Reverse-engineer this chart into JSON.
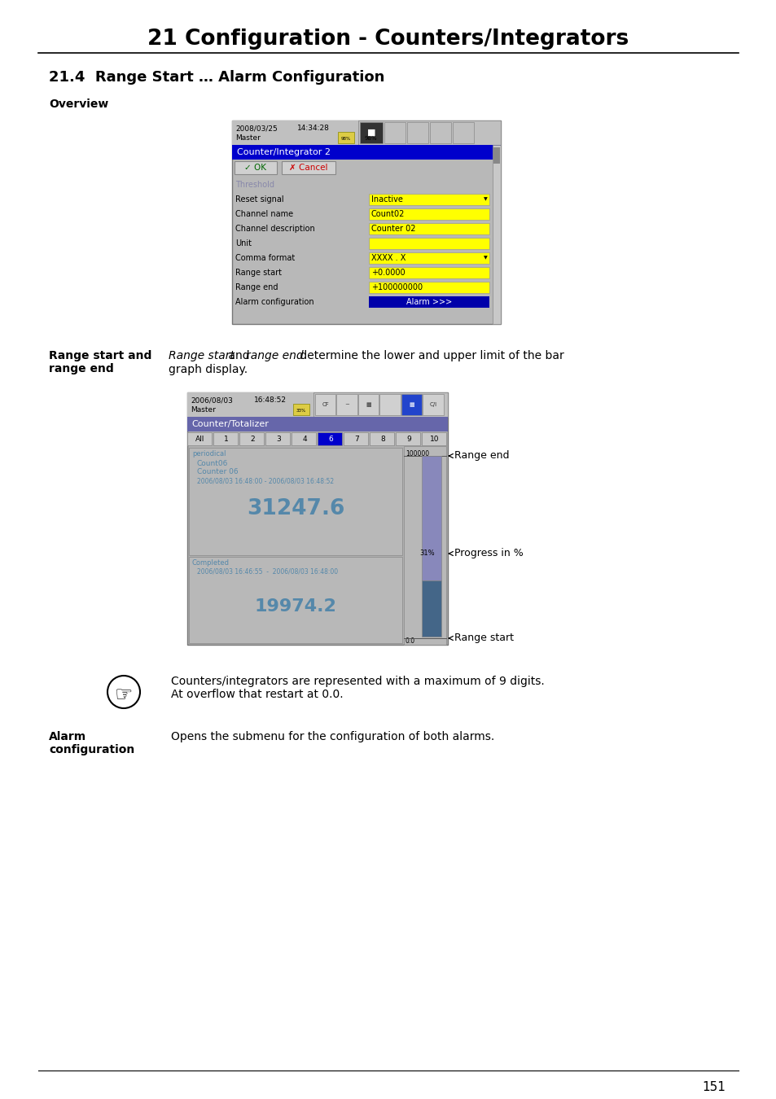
{
  "page_title": "21 Configuration - Counters/Integrators",
  "section_title": "21.4  Range Start … Alarm Configuration",
  "overview_label": "Overview",
  "note_text_1": "Counters/integrators are represented with a maximum of 9 digits.",
  "note_text_2": "At overflow that restart at 0.0.",
  "alarm_config_text": "Opens the submenu for the configuration of both alarms.",
  "page_number": "151",
  "bg_color": "#ffffff",
  "screen1": {
    "date": "2008/03/25",
    "time": "14:34:28",
    "master": "Master",
    "battery_pct": "98%",
    "title_bar": "Counter/Integrator 2",
    "title_bar_bg": "#0000cc",
    "title_bar_fg": "#ffffff",
    "screen_bg": "#b8b8b8",
    "top_bar_bg": "#a0a0a0",
    "fields": [
      {
        "label": "Threshold",
        "value": "",
        "label_color": "#8888aa",
        "is_header": true
      },
      {
        "label": "Reset signal",
        "value": "Inactive",
        "dropdown": true
      },
      {
        "label": "Channel name",
        "value": "Count02"
      },
      {
        "label": "Channel description",
        "value": "Counter 02"
      },
      {
        "label": "Unit",
        "value": ""
      },
      {
        "label": "Comma format",
        "value": "XXXX . X",
        "dropdown": true
      },
      {
        "label": "Range start",
        "value": "+0.0000"
      },
      {
        "label": "Range end",
        "value": "+100000000"
      },
      {
        "label": "Alarm configuration",
        "value": "Alarm >>>",
        "is_button": true
      }
    ],
    "field_bg": "#ffff00",
    "button_bg": "#0000aa",
    "button_fg": "#ffffff"
  },
  "screen2": {
    "date": "2006/08/03",
    "time": "16:48:52",
    "master": "Master",
    "battery_pct": "33%",
    "title_bar": "Counter/Totalizer",
    "title_bar_bg": "#6666aa",
    "title_bar_fg": "#ffffff",
    "screen_bg": "#b0b0b0",
    "top_bar_bg": "#a0a0a0",
    "tabs": [
      "All",
      "1",
      "2",
      "3",
      "4",
      "6",
      "7",
      "8",
      "9",
      "10"
    ],
    "active_tab": "6",
    "active_tab_bg": "#0000cc",
    "active_tab_fg": "#ffffff",
    "text_color": "#5588aa",
    "bar_top_color": "#8888bb",
    "bar_bot_color": "#446688",
    "annotations": {
      "range_end": "Range end",
      "progress": "Progress in %",
      "range_start": "Range start"
    }
  }
}
